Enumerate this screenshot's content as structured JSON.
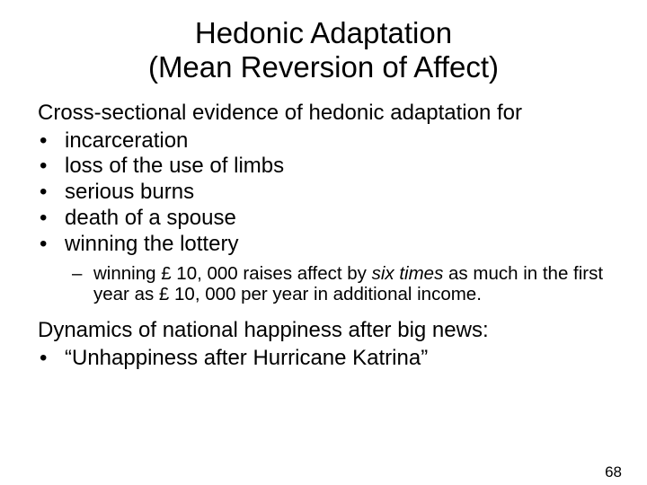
{
  "title_line1": "Hedonic Adaptation",
  "title_line2": "(Mean Reversion of Affect)",
  "intro": "Cross-sectional evidence of hedonic adaptation for",
  "bullets": [
    "incarceration",
    "loss of the use of limbs",
    "serious burns",
    "death of a spouse",
    "winning the lottery"
  ],
  "sub_prefix": "winning £ 10, 000 raises affect by ",
  "sub_italic": "six times",
  "sub_suffix": " as much in the first year as £ 10, 000 per year in additional income.",
  "dynamics_line": "Dynamics of national happiness after big news:",
  "dynamics_bullet": "“Unhappiness after Hurricane Katrina”",
  "page_number": "68",
  "bullet_char": "•",
  "dash_char": "–"
}
